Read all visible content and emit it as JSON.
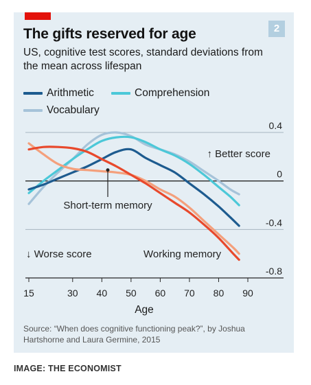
{
  "badge": "2",
  "title": "The gifts reserved for age",
  "subtitle": "US, cognitive test scores, standard deviations from the mean across lifespan",
  "legend": [
    {
      "label": "Arithmetic",
      "color": "#1d5b8f"
    },
    {
      "label": "Comprehension",
      "color": "#4cc8d8"
    },
    {
      "label": "Vocabulary",
      "color": "#a6c3d9"
    }
  ],
  "source": "Source: “When does cognitive functioning peak?”, by Joshua Hartshorne and Laura Germine, 2015",
  "credit": "IMAGE: THE ECONOMIST",
  "chart_data": {
    "type": "line",
    "xlabel": "Age",
    "ylabel": "",
    "xlim": [
      15,
      90
    ],
    "ylim": [
      -0.8,
      0.4
    ],
    "x_ticks": [
      15,
      30,
      40,
      50,
      60,
      70,
      80,
      90
    ],
    "y_ticks": [
      {
        "value": 0.4,
        "label": "0.4"
      },
      {
        "value": 0,
        "label": "0"
      },
      {
        "value": -0.4,
        "label": "-0.4"
      },
      {
        "value": -0.8,
        "label": "-0.8"
      }
    ],
    "grid": true,
    "annotations": [
      {
        "id": "better",
        "text": "↑ Better score"
      },
      {
        "id": "worse",
        "text": "↓ Worse score"
      },
      {
        "id": "stm",
        "text": "Short-term memory"
      },
      {
        "id": "wm",
        "text": "Working memory"
      }
    ],
    "series": [
      {
        "name": "Vocabulary",
        "color": "#a6c3d9",
        "points": [
          [
            15,
            -0.19
          ],
          [
            20,
            -0.05
          ],
          [
            25,
            0.07
          ],
          [
            30,
            0.18
          ],
          [
            35,
            0.3
          ],
          [
            40,
            0.38
          ],
          [
            45,
            0.4
          ],
          [
            50,
            0.37
          ],
          [
            55,
            0.3
          ],
          [
            60,
            0.26
          ],
          [
            65,
            0.22
          ],
          [
            70,
            0.16
          ],
          [
            75,
            0.08
          ],
          [
            80,
            0.0
          ],
          [
            84,
            -0.07
          ],
          [
            87,
            -0.11
          ]
        ]
      },
      {
        "name": "Comprehension",
        "color": "#4cc8d8",
        "points": [
          [
            15,
            -0.1
          ],
          [
            20,
            0.0
          ],
          [
            25,
            0.09
          ],
          [
            30,
            0.18
          ],
          [
            35,
            0.26
          ],
          [
            40,
            0.33
          ],
          [
            45,
            0.36
          ],
          [
            50,
            0.36
          ],
          [
            55,
            0.32
          ],
          [
            60,
            0.26
          ],
          [
            65,
            0.21
          ],
          [
            70,
            0.14
          ],
          [
            75,
            0.05
          ],
          [
            80,
            -0.05
          ],
          [
            84,
            -0.13
          ],
          [
            87,
            -0.2
          ]
        ]
      },
      {
        "name": "Arithmetic",
        "color": "#1d5b8f",
        "points": [
          [
            15,
            -0.07
          ],
          [
            20,
            -0.03
          ],
          [
            25,
            0.02
          ],
          [
            30,
            0.07
          ],
          [
            35,
            0.12
          ],
          [
            40,
            0.18
          ],
          [
            45,
            0.24
          ],
          [
            50,
            0.26
          ],
          [
            55,
            0.19
          ],
          [
            60,
            0.13
          ],
          [
            65,
            0.07
          ],
          [
            70,
            -0.02
          ],
          [
            75,
            -0.11
          ],
          [
            80,
            -0.21
          ],
          [
            84,
            -0.3
          ],
          [
            87,
            -0.37
          ]
        ]
      },
      {
        "name": "Short-term memory",
        "color": "#f4a07c",
        "points": [
          [
            15,
            0.31
          ],
          [
            20,
            0.22
          ],
          [
            25,
            0.14
          ],
          [
            30,
            0.1
          ],
          [
            35,
            0.09
          ],
          [
            40,
            0.08
          ],
          [
            45,
            0.07
          ],
          [
            50,
            0.05
          ],
          [
            55,
            0.0
          ],
          [
            60,
            -0.07
          ],
          [
            65,
            -0.13
          ],
          [
            70,
            -0.22
          ],
          [
            75,
            -0.33
          ],
          [
            80,
            -0.44
          ],
          [
            85,
            -0.55
          ],
          [
            87,
            -0.6
          ]
        ]
      },
      {
        "name": "Working memory",
        "color": "#e8492c",
        "points": [
          [
            15,
            0.26
          ],
          [
            20,
            0.28
          ],
          [
            25,
            0.28
          ],
          [
            30,
            0.27
          ],
          [
            35,
            0.24
          ],
          [
            40,
            0.18
          ],
          [
            45,
            0.12
          ],
          [
            50,
            0.05
          ],
          [
            55,
            -0.02
          ],
          [
            60,
            -0.1
          ],
          [
            65,
            -0.18
          ],
          [
            70,
            -0.26
          ],
          [
            75,
            -0.36
          ],
          [
            80,
            -0.47
          ],
          [
            85,
            -0.6
          ],
          [
            87,
            -0.65
          ]
        ]
      }
    ]
  }
}
